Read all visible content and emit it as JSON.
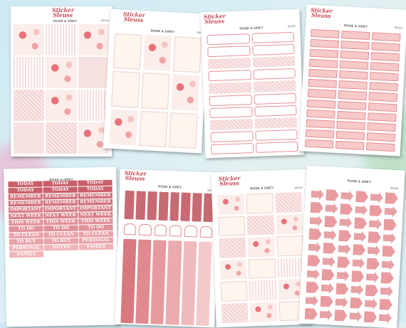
{
  "brand": {
    "line1": "Sticker",
    "line2": "Sleuss"
  },
  "collection": "ROSE & GREY",
  "colors": {
    "accent": "#c8505a",
    "pink": "#f7c9c9",
    "background": "#d6ebf2"
  },
  "sheets": [
    {
      "code": "8016A"
    },
    {
      "code": "8016B"
    },
    {
      "code": "8016C"
    },
    {
      "code": "8016D"
    },
    {
      "code": "8016E"
    },
    {
      "code": "8016F"
    },
    {
      "code": "8016G"
    },
    {
      "code": "8016H"
    }
  ],
  "words": [
    "TODAY",
    "TODAY",
    "TODAY",
    "TODAY",
    "TODAY",
    "TODAY",
    "REMEMBER",
    "REMEMBER",
    "REMEMBER",
    "REMEMBER",
    "REMEMBER",
    "REMEMBER",
    "IMPORTANT",
    "IMPORTANT",
    "IMPORTANT",
    "NEXT WEEK",
    "NEXT WEEK",
    "NEXT WEEK",
    "THIS WEEK",
    "THIS WEEK",
    "THIS WEEK",
    "TO DO",
    "TO DO",
    "TO DO",
    "TO CLEAN",
    "TO CLEAN",
    "TO CLEAN",
    "TO BUY",
    "TO BUY",
    "PERSONAL",
    "PERSONAL",
    "NOTES",
    "FAMILY",
    "FAMILY"
  ]
}
